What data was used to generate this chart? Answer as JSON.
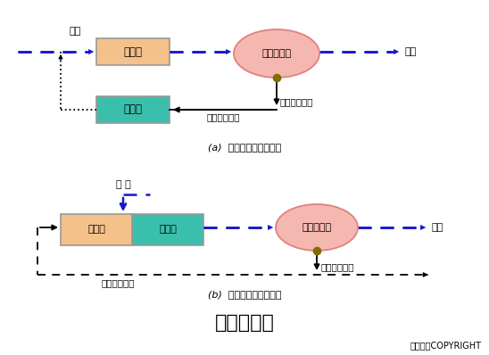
{
  "bg_color": "#ffffff",
  "title": "生物吸附法",
  "title_fontsize": 16,
  "copyright": "东方仿真COPYRIGHT",
  "diagram_a_label": "(a)  再生段与吸附段分建",
  "diagram_b_label": "(b)  再生段与吸附段合建",
  "a_jinshui_label": "进水",
  "a_chushui_label": "出水",
  "a_box1_label": "吸附池",
  "a_box1_color": "#F5C18A",
  "a_box1_border": "#999999",
  "a_box2_label": "再生池",
  "a_box2_color": "#3BBFAD",
  "a_box2_border": "#999999",
  "a_ellipse_label": "二次沉淀池",
  "a_ellipse_fill": "#F5B8B0",
  "a_ellipse_edge": "#E08080",
  "a_dot_color": "#7D7000",
  "a_surplus_label": "剩余活性污泥",
  "a_return_label": "回流活性污泥",
  "b_jinshui_label": "进 水",
  "b_chushui_label": "出水",
  "b_box_left_label": "吸附段",
  "b_box_right_label": "再生段",
  "b_box_left_color": "#F5C18A",
  "b_box_right_color": "#3BBFAD",
  "b_box_border": "#999999",
  "b_ellipse_label": "二次沉淀池",
  "b_ellipse_fill": "#F5B8B0",
  "b_ellipse_edge": "#E08080",
  "b_dot_color": "#7D7000",
  "b_surplus_label": "剩余活性污泥",
  "b_return_label": "回流活性污泥",
  "blue": "#1515CC",
  "black": "#000000"
}
